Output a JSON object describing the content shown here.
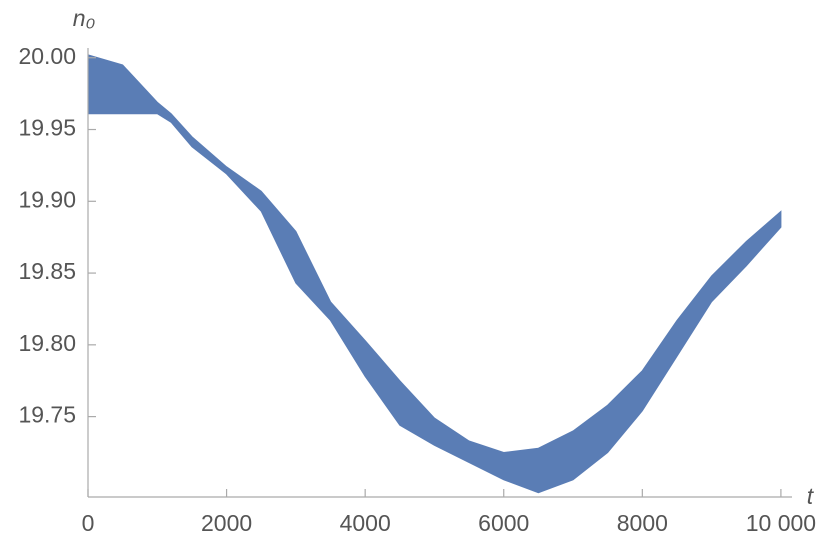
{
  "chart_data": {
    "type": "band",
    "x_label": "t",
    "y_label": "n₀",
    "color": "#5a7db5",
    "x": [
      0,
      500,
      1000,
      1200,
      1500,
      2000,
      2500,
      3000,
      3500,
      4000,
      4500,
      5000,
      5500,
      6000,
      6500,
      7000,
      7500,
      8000,
      8500,
      9000,
      9500,
      10000
    ],
    "upper": [
      20.002,
      19.995,
      19.969,
      19.961,
      19.945,
      19.924,
      19.907,
      19.879,
      19.83,
      19.803,
      19.775,
      19.749,
      19.733,
      19.725,
      19.728,
      19.74,
      19.758,
      19.782,
      19.817,
      19.848,
      19.872,
      19.893
    ],
    "lower": [
      19.961,
      19.961,
      19.961,
      19.955,
      19.938,
      19.919,
      19.893,
      19.843,
      19.817,
      19.778,
      19.744,
      19.73,
      19.718,
      19.706,
      19.697,
      19.706,
      19.725,
      19.754,
      19.792,
      19.83,
      19.855,
      19.882
    ],
    "xlim": [
      0,
      10160
    ],
    "ylim": [
      19.694,
      20.004
    ],
    "xticks": [
      0,
      2000,
      4000,
      6000,
      8000,
      {
        "value": 10000,
        "label": "10 000"
      }
    ],
    "yticks": [
      {
        "value": 20.0,
        "label": "20.00"
      },
      19.95,
      {
        "value": 19.9,
        "label": "19.90"
      },
      19.85,
      {
        "value": 19.8,
        "label": "19.80"
      },
      19.75
    ]
  }
}
